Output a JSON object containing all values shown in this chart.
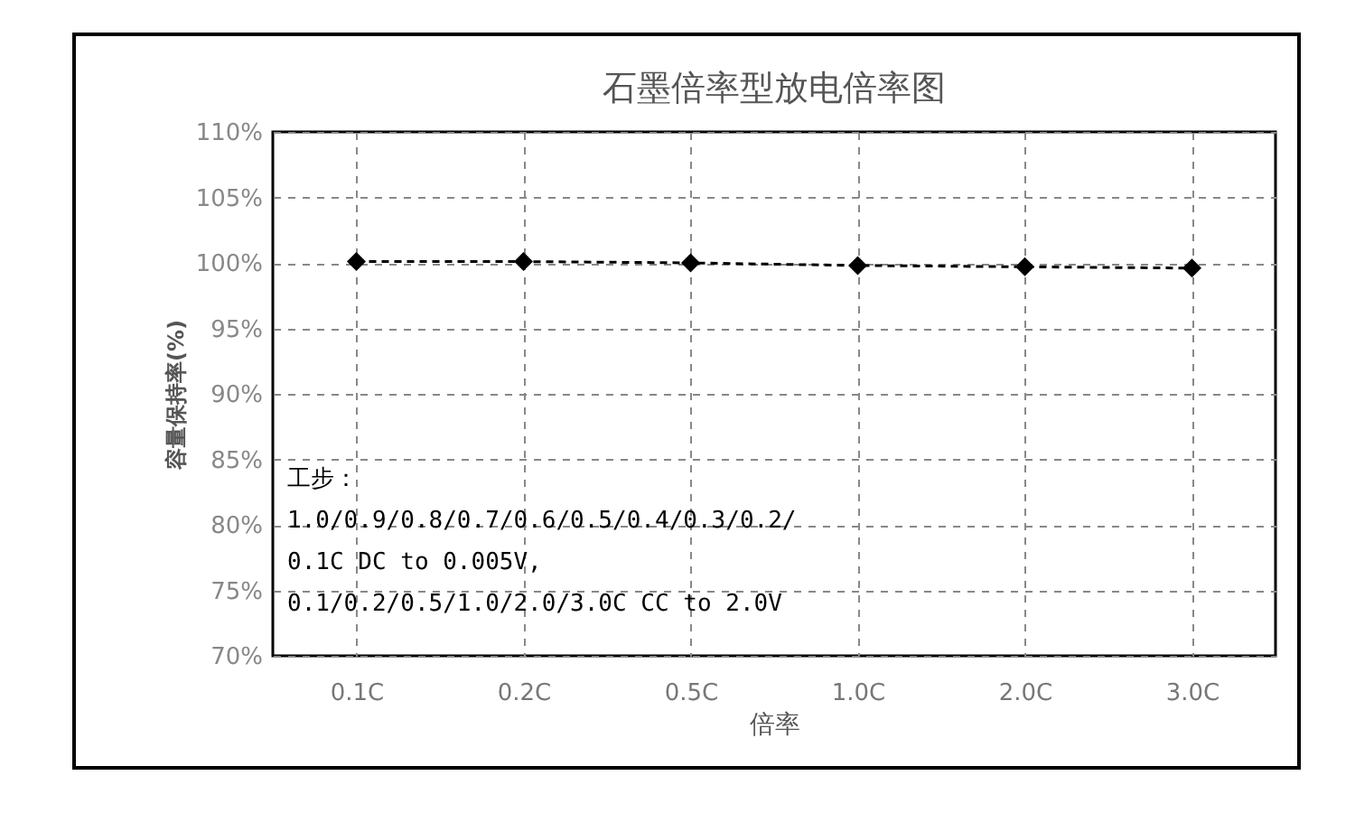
{
  "chart_data": {
    "type": "line",
    "title": "石墨倍率型放电倍率图",
    "xlabel": "倍率",
    "ylabel": "容量保持率(%)",
    "categories": [
      "0.1C",
      "0.2C",
      "0.5C",
      "1.0C",
      "2.0C",
      "3.0C"
    ],
    "series": [
      {
        "color": "#000000",
        "values": [
          100.1,
          100.1,
          100.0,
          99.8,
          99.7,
          99.6
        ]
      }
    ],
    "ylim": [
      70,
      110
    ],
    "yticks": [
      {
        "value": 70,
        "label": "70%"
      },
      {
        "value": 75,
        "label": "75%"
      },
      {
        "value": 80,
        "label": "80%"
      },
      {
        "value": 85,
        "label": "85%"
      },
      {
        "value": 90,
        "label": "90%"
      },
      {
        "value": 95,
        "label": "95%"
      },
      {
        "value": 100,
        "label": "100%"
      },
      {
        "value": 105,
        "label": "105%"
      },
      {
        "value": 110,
        "label": "110%"
      }
    ],
    "grid": true,
    "marker": "diamond",
    "line_style": "dashed",
    "annotations": [
      "工步：\n1.0/0.9/0.8/0.7/0.6/0.5/0.4/0.3/0.2/\n0.1C DC to 0.005V,\n0.1/0.2/0.5/1.0/2.0/3.0C CC to 2.0V"
    ]
  }
}
